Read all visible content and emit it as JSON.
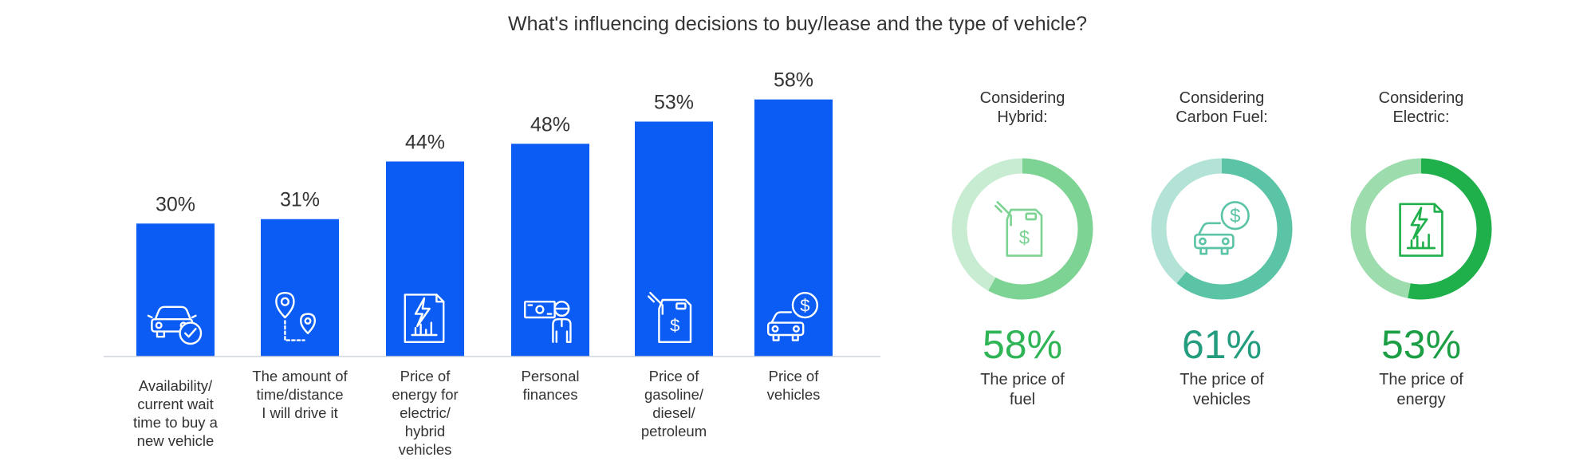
{
  "title": "What's influencing decisions to buy/lease and the type of vehicle?",
  "chart_data": [
    {
      "type": "bar",
      "title": "",
      "categories": [
        [
          "Availability/",
          "current wait",
          "time to buy a",
          "new vehicle"
        ],
        [
          "The amount of",
          "time/distance",
          "I will drive it"
        ],
        [
          "Price of",
          "energy for",
          "electric/",
          "hybrid",
          "vehicles"
        ],
        [
          "Personal",
          "finances"
        ],
        [
          "Price of",
          "gasoline/",
          "diesel/",
          "petroleum"
        ],
        [
          "Price of",
          "vehicles"
        ]
      ],
      "values": [
        30,
        31,
        44,
        48,
        53,
        58
      ],
      "value_labels": [
        "30%",
        "31%",
        "44%",
        "48%",
        "53%",
        "58%"
      ],
      "icons": [
        "car-check-icon",
        "route-pin-icon",
        "energy-bill-icon",
        "money-person-icon",
        "fuel-can-icon",
        "car-dollar-icon"
      ],
      "ylim": [
        0,
        70
      ],
      "bar_color": "#0a5cf5",
      "legend": "none",
      "grid": false
    },
    {
      "type": "pie",
      "donuts": [
        {
          "header": [
            "Considering",
            "Hybrid:"
          ],
          "value": 58,
          "label": "58%",
          "sub": [
            "The price of",
            "fuel"
          ],
          "color": "#7dd393",
          "track": "#c8ecd2",
          "text_color": "#2fb456",
          "icon": "fuel-can-icon"
        },
        {
          "header": [
            "Considering",
            "Carbon Fuel:"
          ],
          "value": 61,
          "label": "61%",
          "sub": [
            "The price of",
            "vehicles"
          ],
          "color": "#5cc4a6",
          "track": "#b3e3d6",
          "text_color": "#249c7e",
          "icon": "car-dollar-icon"
        },
        {
          "header": [
            "Considering",
            "Electric:"
          ],
          "value": 53,
          "label": "53%",
          "sub": [
            "The price of",
            "energy"
          ],
          "color": "#1fb04b",
          "track": "#9ddcad",
          "text_color": "#1b9e44",
          "icon": "energy-bill-icon"
        }
      ]
    }
  ]
}
